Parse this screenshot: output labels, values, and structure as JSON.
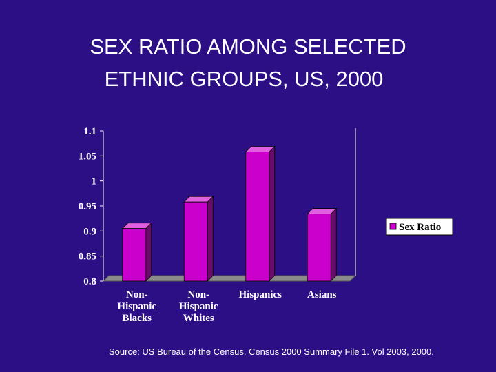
{
  "slide": {
    "title_line1": "SEX RATIO AMONG SELECTED",
    "title_line2": "ETHNIC GROUPS,  US, 2000",
    "source": "Source: US Bureau of the Census. Census 2000 Summary File 1. Vol 2003, 2000."
  },
  "chart_data": {
    "type": "bar",
    "categories": [
      [
        "Non-",
        "Hispanic",
        "Blacks"
      ],
      [
        "Non-",
        "Hispanic",
        "Whites"
      ],
      [
        "Hispanics"
      ],
      [
        "Asians"
      ]
    ],
    "series": [
      {
        "name": "Sex Ratio",
        "values": [
          0.905,
          0.958,
          1.058,
          0.934
        ]
      }
    ],
    "ylim": [
      0.8,
      1.1
    ],
    "yticks": [
      "1.1",
      "1.05",
      "1",
      "0.95",
      "0.9",
      "0.85",
      "0.8"
    ],
    "ytick_values": [
      1.1,
      1.05,
      1.0,
      0.95,
      0.9,
      0.85,
      0.8
    ],
    "title": "",
    "xlabel": "",
    "ylabel": "",
    "grid": false,
    "legend_position": "right",
    "colors": {
      "background": "#2c0f84",
      "bar_front": "#cc00cc",
      "bar_side": "#6a0a6a",
      "bar_top": "#e060e0",
      "floor": "#8a8a8a",
      "axis": "#ffffff"
    }
  }
}
